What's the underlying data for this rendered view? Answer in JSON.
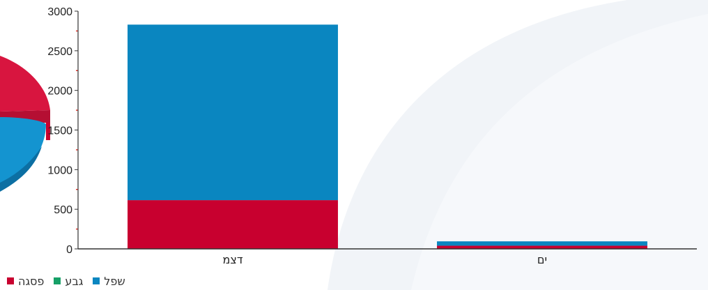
{
  "chart_data": {
    "type": "bar",
    "stacked": true,
    "categories": [
      "דצמ",
      "ים"
    ],
    "series": [
      {
        "name": "שפל",
        "color": "#0a86c0",
        "values": [
          2215,
          55
        ]
      },
      {
        "name": "גבע",
        "color": "#16a067",
        "values": [
          0,
          0
        ]
      },
      {
        "name": "פסגה",
        "color": "#c8002f",
        "values": [
          615,
          40
        ]
      }
    ],
    "stack_order": [
      "פסגה",
      "גבע",
      "שפל"
    ],
    "ylim": [
      0,
      3000
    ],
    "yticks": [
      "0",
      "500",
      "1000",
      "1500",
      "2000",
      "2500",
      "3000"
    ],
    "grid": false,
    "legend_position": "bottom-left"
  },
  "background": {
    "pie_colors": [
      "#d8153f",
      "#1494d0"
    ]
  }
}
